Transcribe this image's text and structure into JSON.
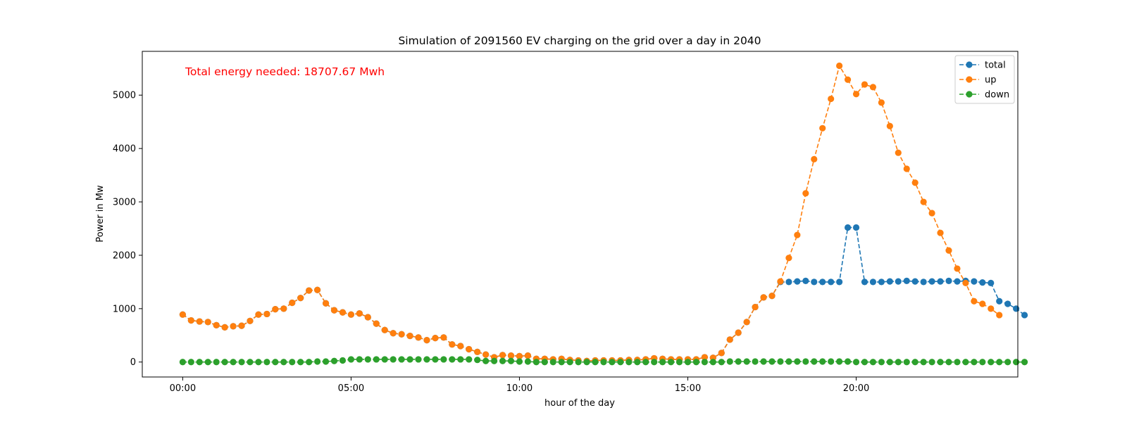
{
  "chart_data": {
    "type": "line",
    "title": "Simulation of 2091560 EV charging on the grid over a day in 2040",
    "xlabel": "hour of the day",
    "ylabel": "Power in Mw",
    "xlim": [
      -1.2,
      24.8
    ],
    "ylim": [
      -280,
      5820
    ],
    "x_ticks": [
      0,
      5,
      10,
      15,
      20
    ],
    "x_tick_labels": [
      "00:00",
      "05:00",
      "10:00",
      "15:00",
      "20:00"
    ],
    "y_ticks": [
      0,
      1000,
      2000,
      3000,
      4000,
      5000
    ],
    "y_tick_labels": [
      "0",
      "1000",
      "2000",
      "3000",
      "4000",
      "5000"
    ],
    "grid": false,
    "legend_position": "top-right",
    "annotation": {
      "text": "Total energy needed: 18707.67 Mwh",
      "color": "#ff0000"
    },
    "x_step_hours": 0.25,
    "series": [
      {
        "name": "total",
        "color": "#1f77b4",
        "style": "dashed-marker",
        "values": [
          890,
          780,
          760,
          750,
          690,
          650,
          670,
          680,
          770,
          890,
          900,
          990,
          1000,
          1110,
          1200,
          1340,
          1350,
          1100,
          970,
          930,
          890,
          910,
          840,
          720,
          600,
          540,
          520,
          490,
          460,
          410,
          450,
          460,
          330,
          300,
          240,
          190,
          140,
          90,
          130,
          120,
          110,
          120,
          60,
          60,
          50,
          60,
          40,
          30,
          20,
          30,
          30,
          30,
          30,
          40,
          40,
          50,
          70,
          60,
          50,
          50,
          50,
          50,
          90,
          80,
          170,
          420,
          550,
          750,
          1030,
          1210,
          1240,
          1500,
          1500,
          1510,
          1520,
          1500,
          1500,
          1500,
          1500,
          2520,
          2520,
          1500,
          1500,
          1500,
          1510,
          1510,
          1520,
          1510,
          1500,
          1510,
          1510,
          1520,
          1510,
          1520,
          1510,
          1490,
          1480,
          1140,
          1090,
          1000,
          880
        ]
      },
      {
        "name": "up",
        "color": "#ff7f0e",
        "style": "dashed-marker",
        "values": [
          890,
          780,
          760,
          750,
          690,
          650,
          670,
          680,
          770,
          890,
          900,
          990,
          1000,
          1110,
          1200,
          1340,
          1350,
          1100,
          970,
          930,
          890,
          910,
          840,
          720,
          600,
          540,
          520,
          490,
          460,
          410,
          450,
          460,
          330,
          300,
          240,
          190,
          140,
          90,
          130,
          120,
          110,
          120,
          60,
          60,
          50,
          60,
          40,
          30,
          20,
          30,
          30,
          30,
          30,
          40,
          40,
          50,
          70,
          60,
          50,
          50,
          50,
          50,
          90,
          80,
          170,
          420,
          550,
          750,
          1030,
          1210,
          1240,
          1510,
          1950,
          2380,
          3160,
          3800,
          4380,
          4930,
          5550,
          5290,
          5020,
          5200,
          5150,
          4860,
          4420,
          3920,
          3620,
          3360,
          3000,
          2790,
          2420,
          2090,
          1750,
          1480,
          1140,
          1090,
          1000,
          880
        ]
      },
      {
        "name": "down",
        "color": "#2ca02c",
        "style": "dashed-marker",
        "values": [
          0,
          0,
          0,
          0,
          0,
          0,
          0,
          0,
          0,
          0,
          0,
          0,
          0,
          0,
          0,
          0,
          10,
          10,
          20,
          30,
          50,
          50,
          50,
          50,
          50,
          50,
          50,
          50,
          50,
          50,
          50,
          50,
          50,
          50,
          50,
          40,
          20,
          20,
          20,
          20,
          10,
          10,
          0,
          0,
          0,
          0,
          0,
          0,
          0,
          0,
          0,
          0,
          0,
          0,
          0,
          0,
          0,
          0,
          0,
          0,
          0,
          0,
          0,
          0,
          0,
          10,
          10,
          10,
          10,
          10,
          10,
          10,
          10,
          10,
          10,
          10,
          10,
          10,
          10,
          10,
          0,
          0,
          0,
          0,
          0,
          0,
          0,
          0,
          0,
          0,
          0,
          0,
          0,
          0,
          0,
          0,
          0,
          0,
          0,
          0,
          0
        ]
      }
    ]
  }
}
